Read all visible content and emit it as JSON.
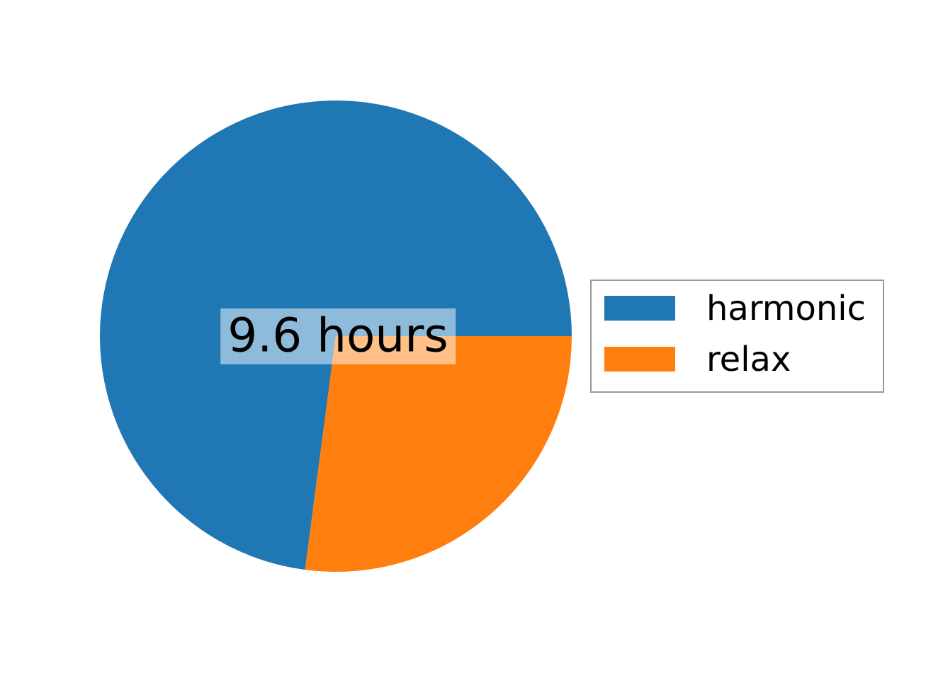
{
  "figure": {
    "background": "#ffffff"
  },
  "center_label": {
    "text": "9.6 hours",
    "color": "#000000",
    "background": "rgba(255,255,255,0.5)"
  },
  "legend": {
    "border_color": "#999999",
    "background": "#ffffff",
    "position": "center right",
    "items": [
      {
        "label": "harmonic",
        "color": "#1f77b4"
      },
      {
        "label": "relax",
        "color": "#ff7f0e"
      }
    ]
  },
  "chart_data": {
    "type": "pie",
    "title": "",
    "center_annotation": "9.6 hours",
    "unit": "hours",
    "total_hours": 9.6,
    "series": [
      {
        "name": "harmonic",
        "value": 7.0,
        "fraction": 0.729,
        "color": "#1f77b4"
      },
      {
        "name": "relax",
        "value": 2.6,
        "fraction": 0.271,
        "color": "#ff7f0e"
      }
    ],
    "start_angle_deg": 0,
    "counterclockwise": true,
    "legend_position": "center right",
    "grid": false
  }
}
